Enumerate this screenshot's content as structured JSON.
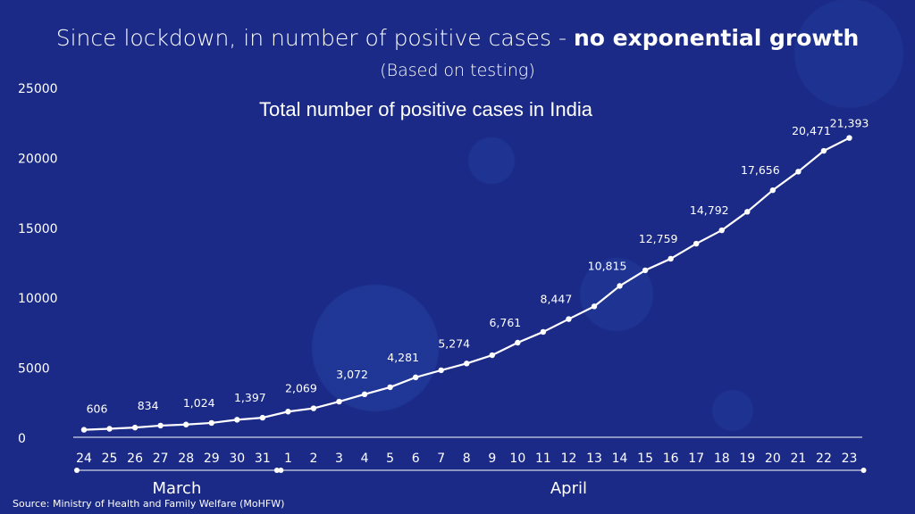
{
  "header": {
    "title_prefix": "Since lockdown, in number of positive cases - ",
    "title_bold": "no exponential growth",
    "subtitle": "(Based on testing)"
  },
  "source_note": "Source: Ministry of Health and Family Welfare (MoHFW)",
  "chart_data": {
    "type": "line",
    "title": "Total number of positive cases in India",
    "xlabel": "",
    "ylabel": "",
    "ylim": [
      0,
      25000
    ],
    "yticks": [
      0,
      5000,
      10000,
      15000,
      20000,
      25000
    ],
    "grid": false,
    "categories": [
      "24",
      "25",
      "26",
      "27",
      "28",
      "29",
      "30",
      "31",
      "1",
      "2",
      "3",
      "4",
      "5",
      "6",
      "7",
      "8",
      "9",
      "10",
      "11",
      "12",
      "13",
      "14",
      "15",
      "16",
      "17",
      "18",
      "19",
      "20",
      "21",
      "22",
      "23"
    ],
    "month_groups": [
      {
        "label": "March",
        "start": 0,
        "end": 7
      },
      {
        "label": "April",
        "start": 8,
        "end": 30
      }
    ],
    "series": [
      {
        "values": [
          536,
          606,
          694,
          834,
          909,
          1024,
          1251,
          1397,
          1834,
          2069,
          2547,
          3072,
          3577,
          4281,
          4789,
          5274,
          5865,
          6761,
          7529,
          8447,
          9352,
          10815,
          11933,
          12759,
          13835,
          14792,
          16116,
          17656,
          18985,
          20471,
          21393
        ],
        "data_labels": [
          {
            "index": 1,
            "text": "606"
          },
          {
            "index": 3,
            "text": "834"
          },
          {
            "index": 5,
            "text": "1,024"
          },
          {
            "index": 7,
            "text": "1,397"
          },
          {
            "index": 9,
            "text": "2,069"
          },
          {
            "index": 11,
            "text": "3,072"
          },
          {
            "index": 13,
            "text": "4,281"
          },
          {
            "index": 15,
            "text": "5,274"
          },
          {
            "index": 17,
            "text": "6,761"
          },
          {
            "index": 19,
            "text": "8,447"
          },
          {
            "index": 21,
            "text": "10,815"
          },
          {
            "index": 23,
            "text": "12,759"
          },
          {
            "index": 25,
            "text": "14,792"
          },
          {
            "index": 27,
            "text": "17,656"
          },
          {
            "index": 29,
            "text": "20,471"
          },
          {
            "index": 30,
            "text": "21,393"
          }
        ]
      }
    ]
  }
}
